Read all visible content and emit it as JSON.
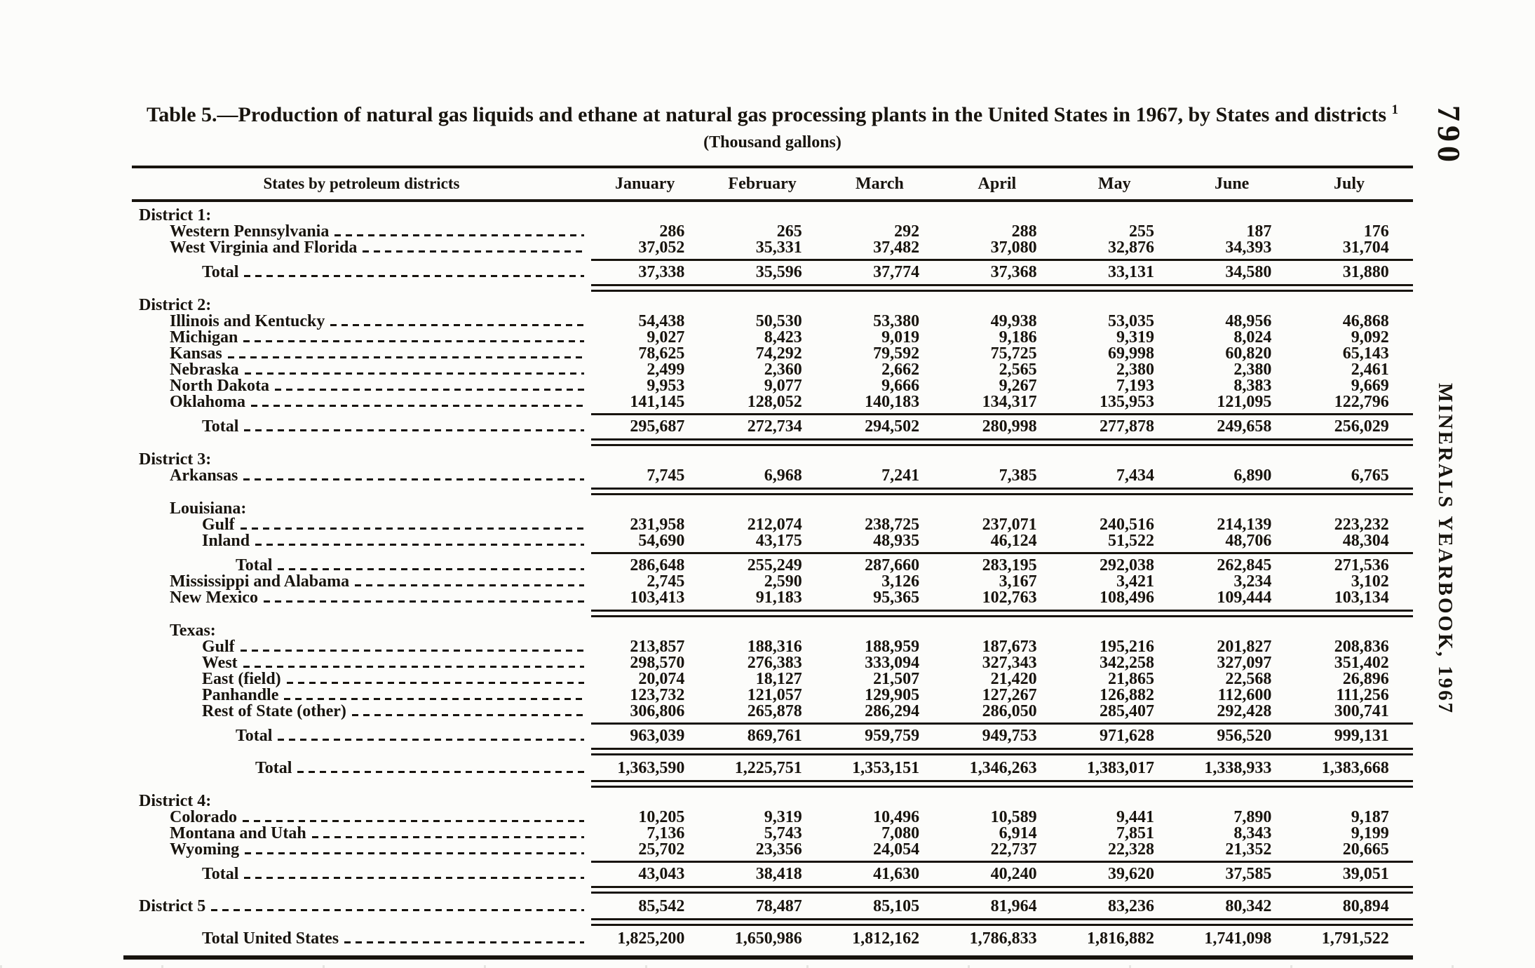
{
  "page": {
    "number": "790",
    "running_head": "MINERALS YEARBOOK, 1967"
  },
  "table": {
    "title": "Table 5.—Production of natural gas liquids and ethane at natural gas processing plants in the United States in 1967, by States and districts",
    "title_footnote_marker": "1",
    "subtitle": "(Thousand gallons)",
    "stub_header": "States by petroleum districts",
    "columns": [
      "January",
      "February",
      "March",
      "April",
      "May",
      "June",
      "July"
    ],
    "rows": [
      {
        "label": "District 1:",
        "type": "heading",
        "indent": 0
      },
      {
        "label": "Western Pennsylvania",
        "type": "data",
        "indent": 1,
        "values": [
          "286",
          "265",
          "292",
          "288",
          "255",
          "187",
          "176"
        ]
      },
      {
        "label": "West Virginia and Florida",
        "type": "data",
        "indent": 1,
        "values": [
          "37,052",
          "35,331",
          "37,482",
          "37,080",
          "32,876",
          "34,393",
          "31,704"
        ],
        "rule_below": "single"
      },
      {
        "label": "Total",
        "type": "total",
        "indent": 2,
        "values": [
          "37,338",
          "35,596",
          "37,774",
          "37,368",
          "33,131",
          "34,580",
          "31,880"
        ],
        "rule_below": "double"
      },
      {
        "label": "District 2:",
        "type": "heading",
        "indent": 0
      },
      {
        "label": "Illinois and Kentucky",
        "type": "data",
        "indent": 1,
        "values": [
          "54,438",
          "50,530",
          "53,380",
          "49,938",
          "53,035",
          "48,956",
          "46,868"
        ]
      },
      {
        "label": "Michigan",
        "type": "data",
        "indent": 1,
        "values": [
          "9,027",
          "8,423",
          "9,019",
          "9,186",
          "9,319",
          "8,024",
          "9,092"
        ]
      },
      {
        "label": "Kansas",
        "type": "data",
        "indent": 1,
        "values": [
          "78,625",
          "74,292",
          "79,592",
          "75,725",
          "69,998",
          "60,820",
          "65,143"
        ]
      },
      {
        "label": "Nebraska",
        "type": "data",
        "indent": 1,
        "values": [
          "2,499",
          "2,360",
          "2,662",
          "2,565",
          "2,380",
          "2,380",
          "2,461"
        ]
      },
      {
        "label": "North Dakota",
        "type": "data",
        "indent": 1,
        "values": [
          "9,953",
          "9,077",
          "9,666",
          "9,267",
          "7,193",
          "8,383",
          "9,669"
        ]
      },
      {
        "label": "Oklahoma",
        "type": "data",
        "indent": 1,
        "values": [
          "141,145",
          "128,052",
          "140,183",
          "134,317",
          "135,953",
          "121,095",
          "122,796"
        ],
        "rule_below": "single"
      },
      {
        "label": "Total",
        "type": "total",
        "indent": 2,
        "values": [
          "295,687",
          "272,734",
          "294,502",
          "280,998",
          "277,878",
          "249,658",
          "256,029"
        ],
        "rule_below": "double"
      },
      {
        "label": "District 3:",
        "type": "heading",
        "indent": 0
      },
      {
        "label": "Arkansas",
        "type": "data",
        "indent": 1,
        "values": [
          "7,745",
          "6,968",
          "7,241",
          "7,385",
          "7,434",
          "6,890",
          "6,765"
        ],
        "rule_below": "double"
      },
      {
        "label": "Louisiana:",
        "type": "heading",
        "indent": 1
      },
      {
        "label": "Gulf",
        "type": "data",
        "indent": 2,
        "values": [
          "231,958",
          "212,074",
          "238,725",
          "237,071",
          "240,516",
          "214,139",
          "223,232"
        ]
      },
      {
        "label": "Inland",
        "type": "data",
        "indent": 2,
        "values": [
          "54,690",
          "43,175",
          "48,935",
          "46,124",
          "51,522",
          "48,706",
          "48,304"
        ],
        "rule_below": "single"
      },
      {
        "label": "Total",
        "type": "total",
        "indent": 3,
        "values": [
          "286,648",
          "255,249",
          "287,660",
          "283,195",
          "292,038",
          "262,845",
          "271,536"
        ]
      },
      {
        "label": "Mississippi and Alabama",
        "type": "data",
        "indent": 1,
        "values": [
          "2,745",
          "2,590",
          "3,126",
          "3,167",
          "3,421",
          "3,234",
          "3,102"
        ]
      },
      {
        "label": "New Mexico",
        "type": "data",
        "indent": 1,
        "values": [
          "103,413",
          "91,183",
          "95,365",
          "102,763",
          "108,496",
          "109,444",
          "103,134"
        ],
        "rule_below": "double"
      },
      {
        "label": "Texas:",
        "type": "heading",
        "indent": 1
      },
      {
        "label": "Gulf",
        "type": "data",
        "indent": 2,
        "values": [
          "213,857",
          "188,316",
          "188,959",
          "187,673",
          "195,216",
          "201,827",
          "208,836"
        ]
      },
      {
        "label": "West",
        "type": "data",
        "indent": 2,
        "values": [
          "298,570",
          "276,383",
          "333,094",
          "327,343",
          "342,258",
          "327,097",
          "351,402"
        ]
      },
      {
        "label": "East (field)",
        "type": "data",
        "indent": 2,
        "values": [
          "20,074",
          "18,127",
          "21,507",
          "21,420",
          "21,865",
          "22,568",
          "26,896"
        ]
      },
      {
        "label": "Panhandle",
        "type": "data",
        "indent": 2,
        "values": [
          "123,732",
          "121,057",
          "129,905",
          "127,267",
          "126,882",
          "112,600",
          "111,256"
        ]
      },
      {
        "label": "Rest of State (other)",
        "type": "data",
        "indent": 2,
        "values": [
          "306,806",
          "265,878",
          "286,294",
          "286,050",
          "285,407",
          "292,428",
          "300,741"
        ],
        "rule_below": "single"
      },
      {
        "label": "Total",
        "type": "total",
        "indent": 3,
        "values": [
          "963,039",
          "869,761",
          "959,759",
          "949,753",
          "971,628",
          "956,520",
          "999,131"
        ],
        "rule_below": "double"
      },
      {
        "label": "Total",
        "type": "total",
        "indent": 4,
        "values": [
          "1,363,590",
          "1,225,751",
          "1,353,151",
          "1,346,263",
          "1,383,017",
          "1,338,933",
          "1,383,668"
        ],
        "rule_below": "double"
      },
      {
        "label": "District 4:",
        "type": "heading",
        "indent": 0
      },
      {
        "label": "Colorado",
        "type": "data",
        "indent": 1,
        "values": [
          "10,205",
          "9,319",
          "10,496",
          "10,589",
          "9,441",
          "7,890",
          "9,187"
        ]
      },
      {
        "label": "Montana and Utah",
        "type": "data",
        "indent": 1,
        "values": [
          "7,136",
          "5,743",
          "7,080",
          "6,914",
          "7,851",
          "8,343",
          "9,199"
        ]
      },
      {
        "label": "Wyoming",
        "type": "data",
        "indent": 1,
        "values": [
          "25,702",
          "23,356",
          "24,054",
          "22,737",
          "22,328",
          "21,352",
          "20,665"
        ],
        "rule_below": "single"
      },
      {
        "label": "Total",
        "type": "total",
        "indent": 2,
        "values": [
          "43,043",
          "38,418",
          "41,630",
          "40,240",
          "39,620",
          "37,585",
          "39,051"
        ],
        "rule_below": "double"
      },
      {
        "label": "District 5",
        "type": "data",
        "indent": 0,
        "values": [
          "85,542",
          "78,487",
          "85,105",
          "81,964",
          "83,236",
          "80,342",
          "80,894"
        ],
        "rule_below": "double"
      },
      {
        "label": "Total United States",
        "type": "total",
        "indent": 2,
        "values": [
          "1,825,200",
          "1,650,986",
          "1,812,162",
          "1,786,833",
          "1,816,882",
          "1,741,098",
          "1,791,522"
        ]
      }
    ]
  }
}
